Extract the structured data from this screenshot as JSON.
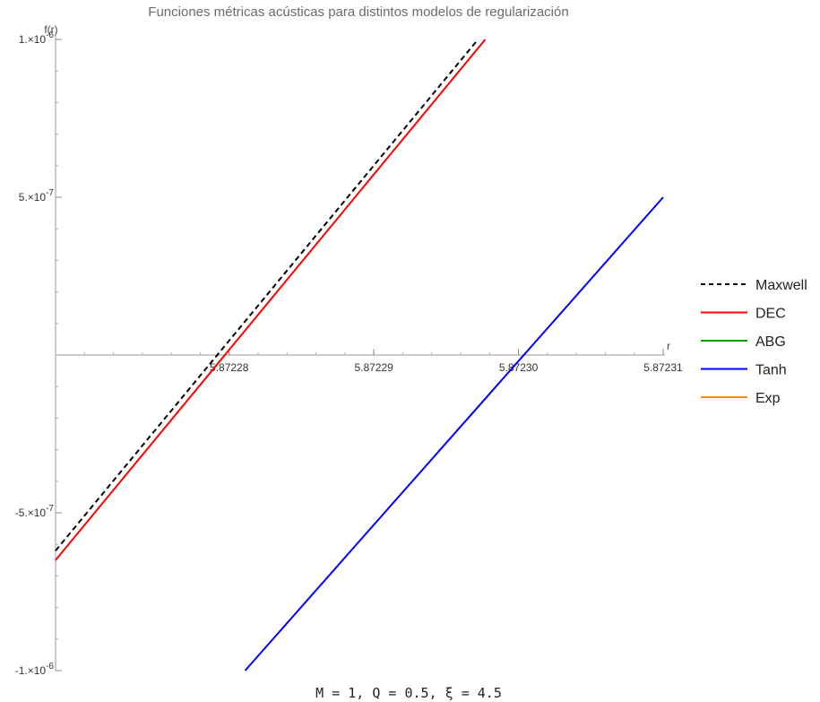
{
  "chart_data": {
    "type": "line",
    "title": "Funciones métricas acústicas para distintos modelos de regularización",
    "xlabel": "r",
    "ylabel": "f(r)",
    "xlim": [
      5.872268,
      5.87231
    ],
    "ylim": [
      -1e-06,
      1e-06
    ],
    "x_ticks": [
      5.87228,
      5.87229,
      5.8723,
      5.87231
    ],
    "x_tick_labels": [
      "5.87228",
      "5.87229",
      "5.87230",
      "5.87231"
    ],
    "y_ticks": [
      -1e-06,
      -5e-07,
      5e-07,
      1e-06
    ],
    "y_tick_labels": [
      {
        "mantissa": "-1.×10",
        "exp": "-6"
      },
      {
        "mantissa": "-5.×10",
        "exp": "-7"
      },
      {
        "mantissa": "5.×10",
        "exp": "-7"
      },
      {
        "mantissa": "1.×10",
        "exp": "-6"
      }
    ],
    "grid": false,
    "legend_position": "right",
    "series": [
      {
        "name": "Maxwell",
        "color": "#000000",
        "dash": "6,4",
        "x": [
          5.872268,
          5.8722972
        ],
        "y": [
          -6.2e-07,
          1e-06
        ]
      },
      {
        "name": "DEC",
        "color": "#ff0000",
        "dash": "",
        "x": [
          5.872268,
          5.8722977
        ],
        "y": [
          -6.5e-07,
          1e-06
        ]
      },
      {
        "name": "ABG",
        "color": "#00a000",
        "dash": "",
        "x": [],
        "y": []
      },
      {
        "name": "Tanh",
        "color": "#0000ff",
        "dash": "",
        "x": [
          5.8722811,
          5.87231
        ],
        "y": [
          -1e-06,
          5e-07
        ]
      },
      {
        "name": "Exp",
        "color": "#ff8c00",
        "dash": "",
        "x": [],
        "y": []
      }
    ],
    "caption": "M = 1, Q = 0.5, ξ = 4.5"
  }
}
